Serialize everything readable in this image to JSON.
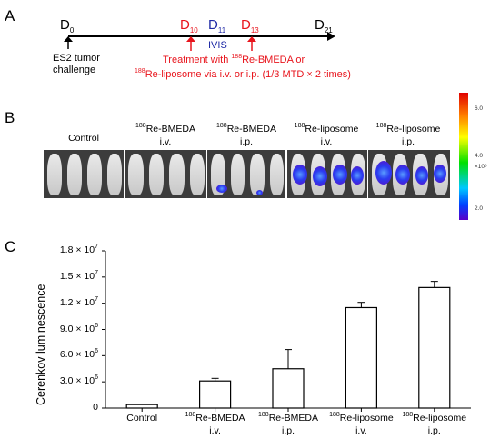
{
  "panels": {
    "a": "A",
    "b": "B",
    "c": "C"
  },
  "timeline": {
    "d0": "D",
    "d0_sub": "0",
    "d10": "D",
    "d10_sub": "10",
    "d11": "D",
    "d11_sub": "11",
    "d13": "D",
    "d13_sub": "13",
    "d21": "D",
    "d21_sub": "21",
    "ivis": "IVIS",
    "tumor_line1": "ES2 tumor",
    "tumor_line2": "challenge",
    "treat_line1_a": "Treatment with ",
    "treat_line1_sup": "188",
    "treat_line1_b": "Re-BMEDA or",
    "treat_line2_sup": "188",
    "treat_line2_b": "Re-liposome via i.v. or i.p. (1/3 MTD × 2 times)",
    "colors": {
      "red": "#e8141c",
      "blue": "#1f2aa6"
    }
  },
  "imaging": {
    "groups": [
      {
        "sup": "",
        "line1": "Control",
        "line2": ""
      },
      {
        "sup": "188",
        "line1": "Re-BMEDA",
        "line2": "i.v."
      },
      {
        "sup": "188",
        "line1": "Re-BMEDA",
        "line2": "i.p."
      },
      {
        "sup": "188",
        "line1": "Re-liposome",
        "line2": "i.v."
      },
      {
        "sup": "188",
        "line1": "Re-liposome",
        "line2": "i.p."
      }
    ],
    "colorbar": {
      "ticks": [
        "6.0",
        "4.0",
        "2.0"
      ],
      "unit": "×10⁶"
    }
  },
  "chart_data": {
    "type": "bar",
    "categories": [
      "Control",
      "188Re-BMEDA i.v.",
      "188Re-BMEDA i.p.",
      "188Re-liposome i.v.",
      "188Re-liposome i.p."
    ],
    "category_labels": [
      {
        "sup": "",
        "line1": "Control",
        "line2": ""
      },
      {
        "sup": "188",
        "line1": "Re-BMEDA",
        "line2": "i.v."
      },
      {
        "sup": "188",
        "line1": "Re-BMEDA",
        "line2": "i.p."
      },
      {
        "sup": "188",
        "line1": "Re-liposome",
        "line2": "i.v."
      },
      {
        "sup": "188",
        "line1": "Re-liposome",
        "line2": "i.p."
      }
    ],
    "values": [
      400000,
      3100000,
      4500000,
      11500000,
      13800000
    ],
    "errors": [
      0,
      300000,
      2200000,
      600000,
      700000
    ],
    "ylabel": "Cerenkov luminescence",
    "ylim": [
      0,
      18000000
    ],
    "yticks": [
      0,
      3000000,
      6000000,
      9000000,
      12000000,
      15000000,
      18000000
    ],
    "ytick_labels": [
      {
        "mant": "0",
        "exp": ""
      },
      {
        "mant": "3.0 × 10",
        "exp": "6"
      },
      {
        "mant": "6.0 × 10",
        "exp": "6"
      },
      {
        "mant": "9.0 × 10",
        "exp": "6"
      },
      {
        "mant": "1.2 × 10",
        "exp": "7"
      },
      {
        "mant": "1.5 × 10",
        "exp": "7"
      },
      {
        "mant": "1.8 × 10",
        "exp": "7"
      }
    ],
    "bar_color": "#ffffff",
    "edge_color": "#000000"
  }
}
